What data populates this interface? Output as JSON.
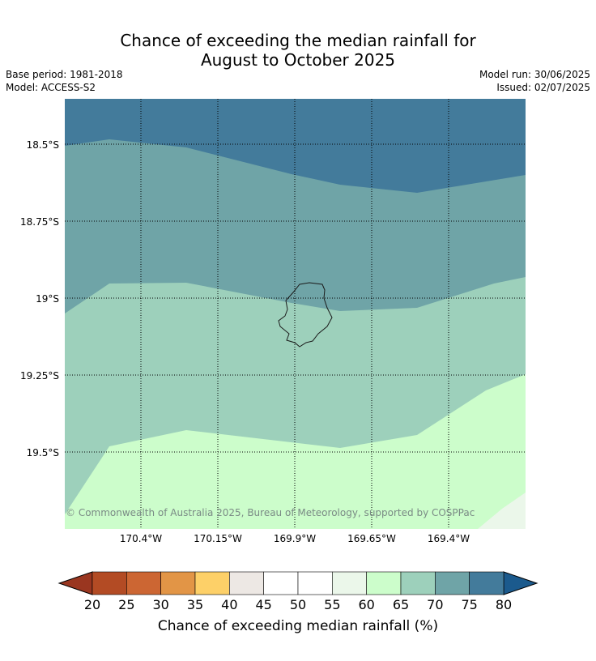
{
  "title": {
    "line1": "Chance of exceeding the median rainfall for",
    "line2": "August to October 2025"
  },
  "meta": {
    "base_period": "Base period: 1981-2018",
    "model": "Model: ACCESS-S2",
    "model_run": "Model run: 30/06/2025",
    "issued": "Issued: 02/07/2025"
  },
  "map": {
    "lat_labels": [
      "18.5°S",
      "18.75°S",
      "19°S",
      "19.25°S",
      "19.5°S"
    ],
    "lon_labels": [
      "170.4°W",
      "170.15°W",
      "169.9°W",
      "169.65°W",
      "169.4°W"
    ],
    "copyright": "© Commonwealth of Australia 2025, Bureau of Meteorology, supported by COSPPac",
    "zone_colors": {
      "75_80": "#437b9b",
      "70_75": "#6fa4a7",
      "65_70": "#9dd0bb",
      "60_65": "#ccfdcb",
      "55_60": "#ebf7ea"
    }
  },
  "colorbar": {
    "ticks": [
      "20",
      "25",
      "30",
      "35",
      "40",
      "45",
      "50",
      "55",
      "60",
      "65",
      "70",
      "75",
      "80"
    ],
    "colors": [
      "#b34b24",
      "#cc6633",
      "#e29546",
      "#fdd068",
      "#ede8e4",
      "#ffffff",
      "#ffffff",
      "#ebf7ea",
      "#ccfdcb",
      "#9dd0bb",
      "#6fa4a7",
      "#437b9b"
    ],
    "low_color": "#9a3620",
    "high_color": "#1b5a8d",
    "label": "Chance of exceeding median rainfall (%)"
  }
}
